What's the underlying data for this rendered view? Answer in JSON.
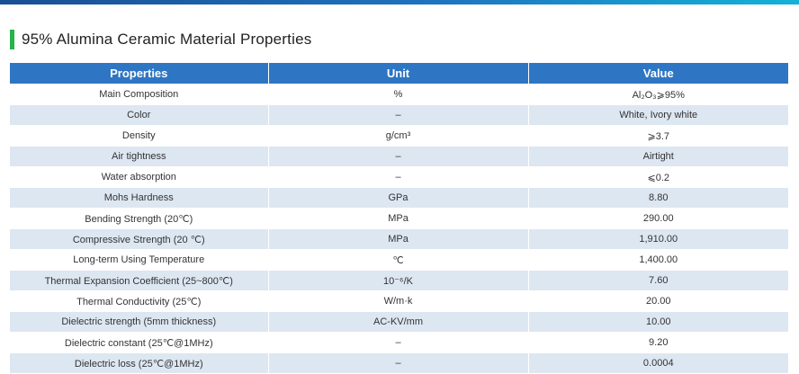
{
  "title": "95% Alumina Ceramic Material Properties",
  "colors": {
    "accent_bar": "#27b44a",
    "header_bg": "#2e76c3",
    "stripe_bg": "#dde7f2"
  },
  "table": {
    "headers": [
      "Properties",
      "Unit",
      "Value"
    ],
    "rows": [
      {
        "property": "Main Composition",
        "unit": "%",
        "value": "Al₂O₃⩾95%"
      },
      {
        "property": "Color",
        "unit": "–",
        "value": "White, Ivory white"
      },
      {
        "property": "Density",
        "unit": "g/cm³",
        "value": "⩾3.7"
      },
      {
        "property": "Air tightness",
        "unit": "–",
        "value": "Airtight"
      },
      {
        "property": "Water absorption",
        "unit": "–",
        "value": "⩽0.2"
      },
      {
        "property": "Mohs Hardness",
        "unit": "GPa",
        "value": "8.80"
      },
      {
        "property": "Bending Strength (20℃)",
        "unit": "MPa",
        "value": "290.00"
      },
      {
        "property": "Compressive Strength  (20 ℃)",
        "unit": "MPa",
        "value": "1,910.00"
      },
      {
        "property": "Long-term Using Temperature",
        "unit": "℃",
        "value": "1,400.00"
      },
      {
        "property": "Thermal Expansion Coefficient (25~800℃)",
        "unit": "10⁻⁶/K",
        "value": "7.60"
      },
      {
        "property": "Thermal Conductivity  (25℃)",
        "unit": "W/m·k",
        "value": "20.00"
      },
      {
        "property": "Dielectric strength (5mm thickness)",
        "unit": "AC-KV/mm",
        "value": "10.00"
      },
      {
        "property": "Dielectric constant  (25℃@1MHz)",
        "unit": "–",
        "value": "9.20"
      },
      {
        "property": "Dielectric loss  (25℃@1MHz)",
        "unit": "–",
        "value": "0.0004"
      }
    ]
  }
}
